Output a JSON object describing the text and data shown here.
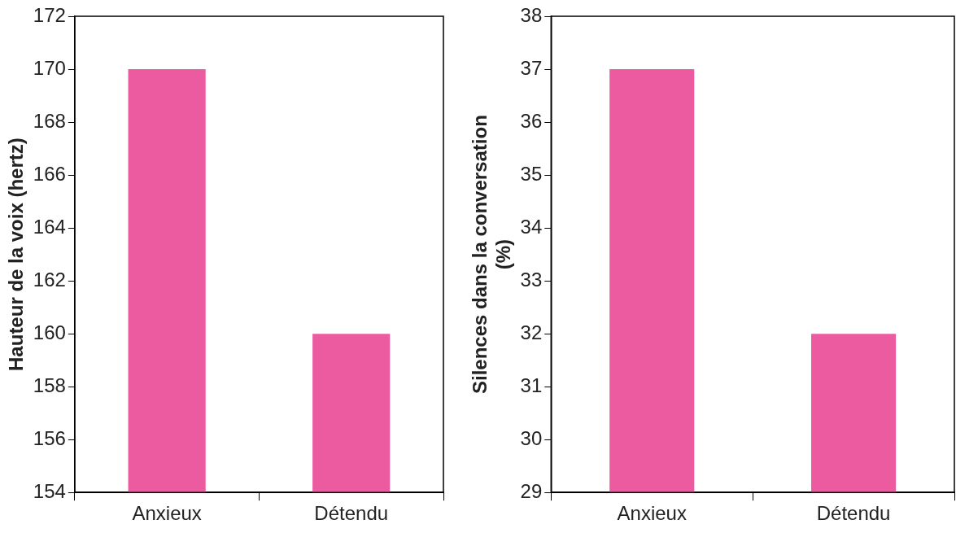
{
  "chart_data": [
    {
      "type": "bar",
      "ylabel": "Hauteur de la voix (hertz)",
      "categories": [
        "Anxieux",
        "Détendu"
      ],
      "values": [
        170,
        160
      ],
      "color": "#ec5aa0",
      "ylim": [
        154,
        172
      ],
      "yticks": [
        154,
        156,
        158,
        160,
        162,
        164,
        166,
        168,
        170,
        172
      ],
      "grid": false,
      "legend": false
    },
    {
      "type": "bar",
      "ylabel": "Silences dans la conversation\n(%)",
      "categories": [
        "Anxieux",
        "Détendu"
      ],
      "values": [
        37,
        32
      ],
      "color": "#ec5aa0",
      "ylim": [
        29,
        38
      ],
      "yticks": [
        29,
        30,
        31,
        32,
        33,
        34,
        35,
        36,
        37,
        38
      ],
      "grid": false,
      "legend": false
    }
  ]
}
